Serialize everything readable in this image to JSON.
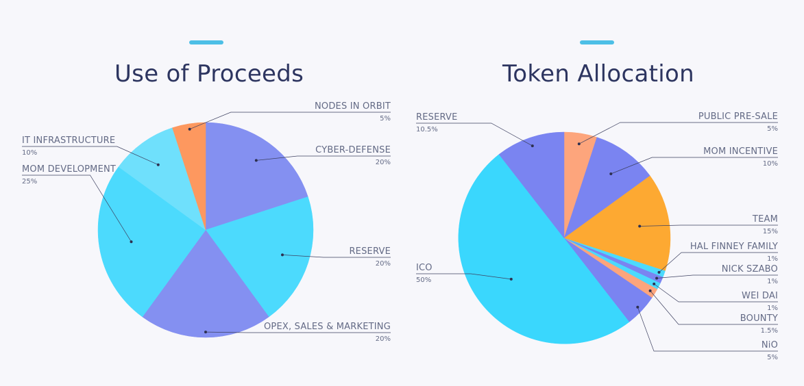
{
  "chart_data": [
    {
      "type": "pie",
      "title": "Use of Proceeds",
      "slices": [
        {
          "label": "CYBER-DEFENSE",
          "value": 20,
          "value_label": "20%",
          "color": "#8490f1"
        },
        {
          "label": "RESERVE",
          "value": 20,
          "value_label": "20%",
          "color": "#4cdafd"
        },
        {
          "label": "OPEX, SALES & MARKETING",
          "value": 20,
          "value_label": "20%",
          "color": "#8490f1"
        },
        {
          "label": "MOM DEVELOPMENT",
          "value": 25,
          "value_label": "25%",
          "color": "#4cdafd"
        },
        {
          "label": "IT  INFRASTRUCTURE",
          "value": 10,
          "value_label": "10%",
          "color": "#6fe0fc"
        },
        {
          "label": "NODES IN  ORBIT",
          "value": 5,
          "value_label": "5%",
          "color": "#fd985f"
        }
      ]
    },
    {
      "type": "pie",
      "title": "Token Allocation",
      "slices": [
        {
          "label": "PUBLIC PRE-SALE",
          "value": 5,
          "value_label": "5%",
          "color": "#fda57c"
        },
        {
          "label": "MOM INCENTIVE",
          "value": 10,
          "value_label": "10%",
          "color": "#7a84f1"
        },
        {
          "label": "TEAM",
          "value": 15,
          "value_label": "15%",
          "color": "#fda932"
        },
        {
          "label": "HAL FINNEY FAMILY",
          "value": 1,
          "value_label": "1%",
          "color": "#4cdafd"
        },
        {
          "label": "NICK SZABO",
          "value": 1,
          "value_label": "1%",
          "color": "#7a84f1"
        },
        {
          "label": "WEI DAI",
          "value": 1,
          "value_label": "1%",
          "color": "#4cdafd"
        },
        {
          "label": "BOUNTY",
          "value": 1.5,
          "value_label": "1.5%",
          "color": "#fda57c"
        },
        {
          "label": "NiO",
          "value": 5,
          "value_label": "5%",
          "color": "#7a84f1"
        },
        {
          "label": "ICO",
          "value": 50,
          "value_label": "50%",
          "color": "#3ad7fd"
        },
        {
          "label": "RESERVE",
          "value": 10.5,
          "value_label": "10.5%",
          "color": "#7a84f1"
        }
      ]
    }
  ]
}
